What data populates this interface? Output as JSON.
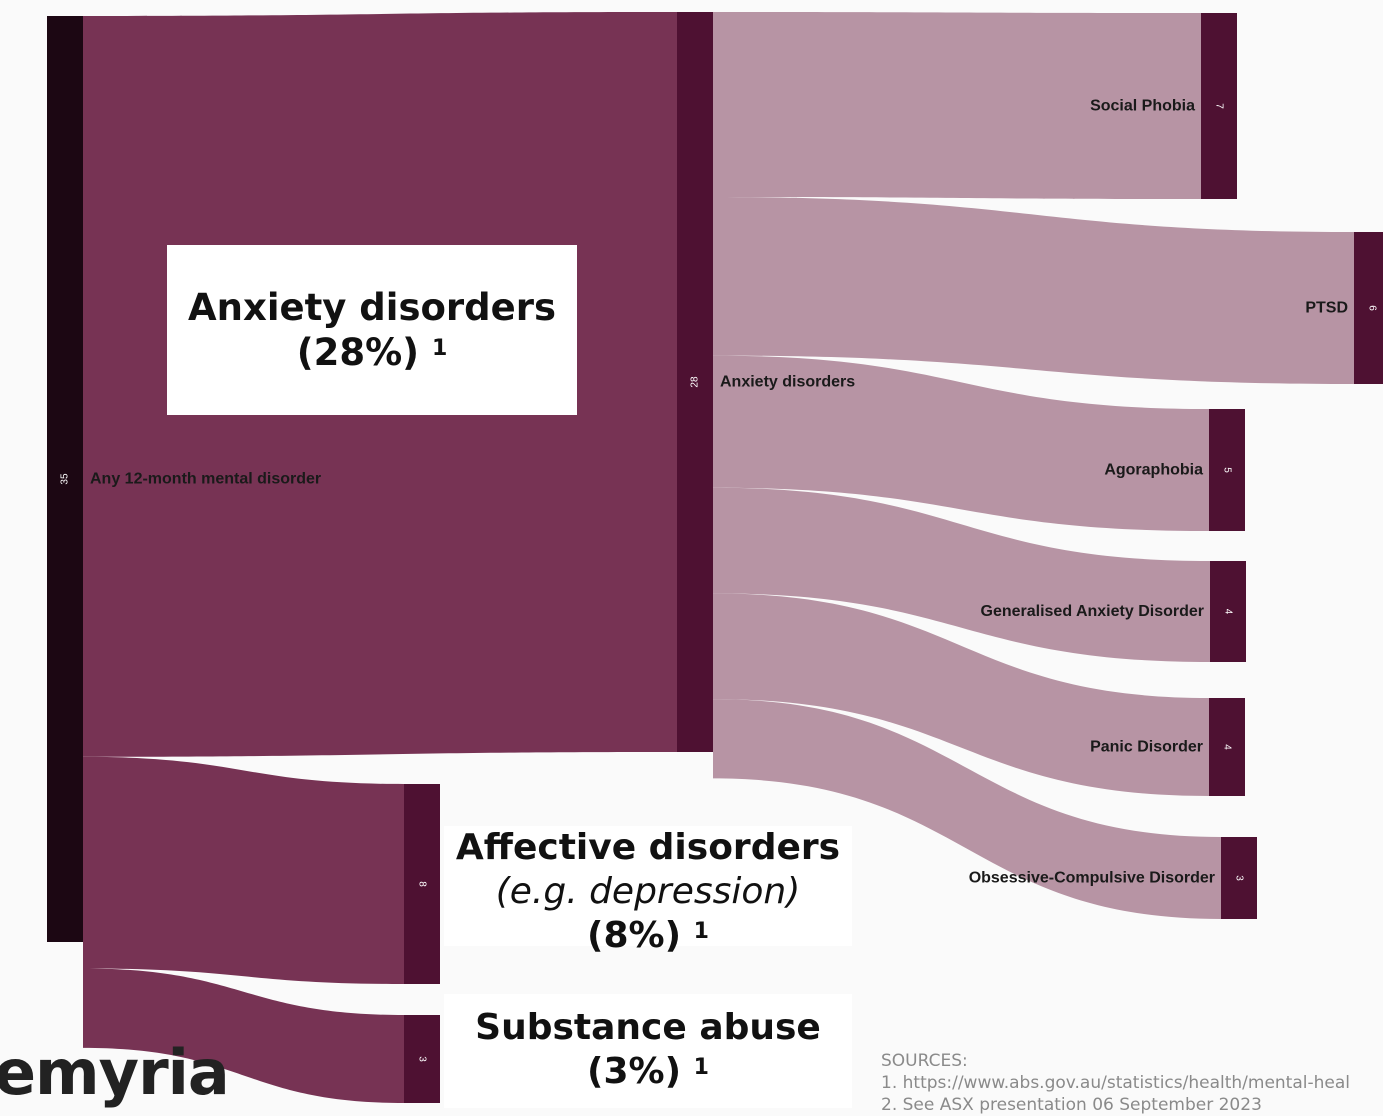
{
  "colors": {
    "root_node": "#1c0713",
    "node": "#4e1132",
    "link_primary": "#773354",
    "link_secondary": "#b794a4",
    "callout_bg": "#ffffff"
  },
  "chart_data": {
    "type": "sankey",
    "nodes": [
      {
        "id": "any",
        "label": "Any 12-month mental disorder",
        "value": 35
      },
      {
        "id": "anxiety",
        "label": "Anxiety disorders",
        "value": 28
      },
      {
        "id": "affective",
        "label": "",
        "value": 8
      },
      {
        "id": "substance",
        "label": "",
        "value": 3
      },
      {
        "id": "social",
        "label": "Social Phobia",
        "value": 7
      },
      {
        "id": "ptsd",
        "label": "PTSD",
        "value": 6
      },
      {
        "id": "agora",
        "label": "Agoraphobia",
        "value": 5
      },
      {
        "id": "gad",
        "label": "Generalised Anxiety Disorder",
        "value": 4
      },
      {
        "id": "panic",
        "label": "Panic Disorder",
        "value": 4
      },
      {
        "id": "ocd",
        "label": "Obsessive-Compulsive Disorder",
        "value": 3
      }
    ],
    "links": [
      {
        "source": "any",
        "target": "anxiety",
        "value": 28
      },
      {
        "source": "any",
        "target": "affective",
        "value": 8
      },
      {
        "source": "any",
        "target": "substance",
        "value": 3
      },
      {
        "source": "anxiety",
        "target": "social",
        "value": 7
      },
      {
        "source": "anxiety",
        "target": "ptsd",
        "value": 6
      },
      {
        "source": "anxiety",
        "target": "agora",
        "value": 5
      },
      {
        "source": "anxiety",
        "target": "gad",
        "value": 4
      },
      {
        "source": "anxiety",
        "target": "panic",
        "value": 4
      },
      {
        "source": "anxiety",
        "target": "ocd",
        "value": 3
      }
    ]
  },
  "callouts": {
    "anxiety": {
      "title": "Anxiety disorders",
      "pct": "(28%)",
      "ref": "1"
    },
    "affective": {
      "title": "Affective disorders",
      "subtitle": "(e.g. depression)",
      "pct": "(8%)",
      "ref": "1"
    },
    "substance": {
      "title": "Substance abuse",
      "pct": "(3%)",
      "ref": "1"
    }
  },
  "logo": {
    "text": "emyria"
  },
  "sources": {
    "heading": "SOURCES:",
    "lines": [
      "1. https://www.abs.gov.au/statistics/health/mental-heal",
      "2. See ASX presentation 06 September 2023"
    ]
  }
}
